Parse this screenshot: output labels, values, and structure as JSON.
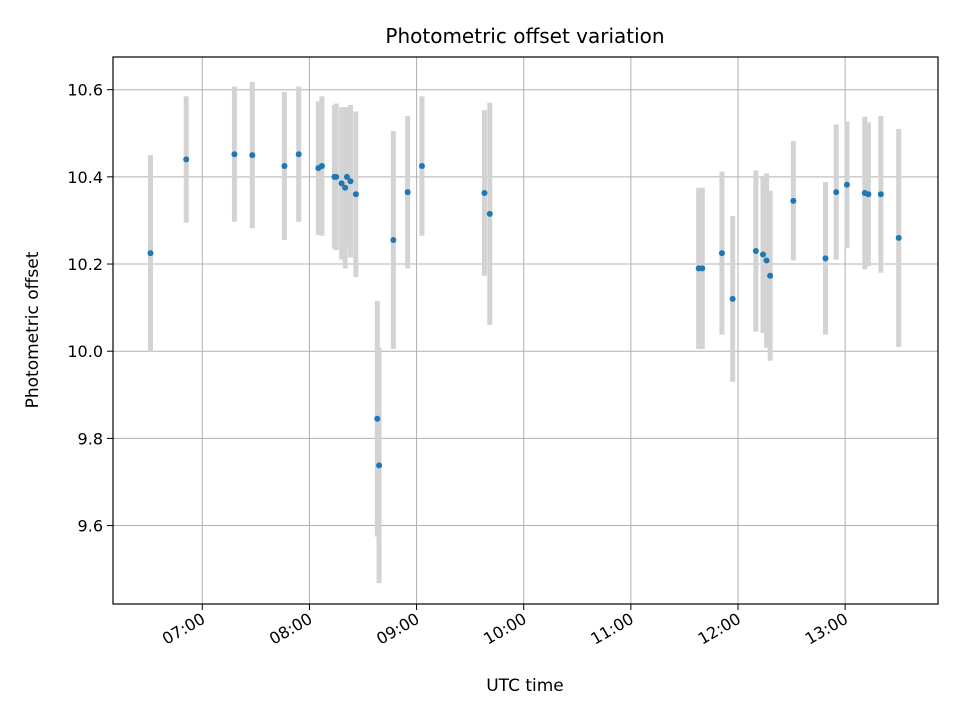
{
  "chart_data": {
    "type": "scatter",
    "title": "Photometric offset variation",
    "xlabel": "UTC time",
    "ylabel": "Photometric offset",
    "x_ticks": [
      "07:00",
      "08:00",
      "09:00",
      "10:00",
      "11:00",
      "12:00",
      "13:00"
    ],
    "y_ticks": [
      "9.6",
      "9.8",
      "10.0",
      "10.2",
      "10.4",
      "10.6"
    ],
    "xlim": [
      "06:10",
      "13:52"
    ],
    "ylim": [
      9.42,
      10.675
    ],
    "grid": true,
    "colors": {
      "point": "#1f77b4",
      "errorbar": "#d3d3d3",
      "grid": "#b0b0b0"
    },
    "points": [
      {
        "time": "06:31",
        "y": 10.225,
        "err": 0.225
      },
      {
        "time": "06:51",
        "y": 10.44,
        "err": 0.145
      },
      {
        "time": "07:18",
        "y": 10.452,
        "err": 0.155
      },
      {
        "time": "07:28",
        "y": 10.45,
        "err": 0.168
      },
      {
        "time": "07:46",
        "y": 10.425,
        "err": 0.17
      },
      {
        "time": "07:54",
        "y": 10.452,
        "err": 0.155
      },
      {
        "time": "08:05",
        "y": 10.42,
        "err": 0.153
      },
      {
        "time": "08:07",
        "y": 10.425,
        "err": 0.16
      },
      {
        "time": "08:14",
        "y": 10.4,
        "err": 0.165
      },
      {
        "time": "08:15",
        "y": 10.4,
        "err": 0.168
      },
      {
        "time": "08:18",
        "y": 10.385,
        "err": 0.175
      },
      {
        "time": "08:20",
        "y": 10.375,
        "err": 0.185
      },
      {
        "time": "08:21",
        "y": 10.4,
        "err": 0.16
      },
      {
        "time": "08:23",
        "y": 10.39,
        "err": 0.175
      },
      {
        "time": "08:26",
        "y": 10.36,
        "err": 0.19
      },
      {
        "time": "08:38",
        "y": 9.845,
        "err": 0.27
      },
      {
        "time": "08:39",
        "y": 9.738,
        "err": 0.27
      },
      {
        "time": "08:47",
        "y": 10.255,
        "err": 0.25
      },
      {
        "time": "08:55",
        "y": 10.365,
        "err": 0.175
      },
      {
        "time": "09:03",
        "y": 10.425,
        "err": 0.16
      },
      {
        "time": "09:38",
        "y": 10.363,
        "err": 0.19
      },
      {
        "time": "09:41",
        "y": 10.315,
        "err": 0.255
      },
      {
        "time": "11:38",
        "y": 10.19,
        "err": 0.185
      },
      {
        "time": "11:40",
        "y": 10.19,
        "err": 0.185
      },
      {
        "time": "11:51",
        "y": 10.225,
        "err": 0.187
      },
      {
        "time": "11:57",
        "y": 10.12,
        "err": 0.19
      },
      {
        "time": "12:10",
        "y": 10.23,
        "err": 0.185
      },
      {
        "time": "12:14",
        "y": 10.222,
        "err": 0.18
      },
      {
        "time": "12:16",
        "y": 10.208,
        "err": 0.2
      },
      {
        "time": "12:18",
        "y": 10.173,
        "err": 0.195
      },
      {
        "time": "12:31",
        "y": 10.345,
        "err": 0.137
      },
      {
        "time": "12:49",
        "y": 10.213,
        "err": 0.175
      },
      {
        "time": "12:55",
        "y": 10.365,
        "err": 0.155
      },
      {
        "time": "13:01",
        "y": 10.382,
        "err": 0.145
      },
      {
        "time": "13:11",
        "y": 10.363,
        "err": 0.175
      },
      {
        "time": "13:13",
        "y": 10.36,
        "err": 0.165
      },
      {
        "time": "13:20",
        "y": 10.36,
        "err": 0.18
      },
      {
        "time": "13:30",
        "y": 10.26,
        "err": 0.25
      }
    ]
  }
}
